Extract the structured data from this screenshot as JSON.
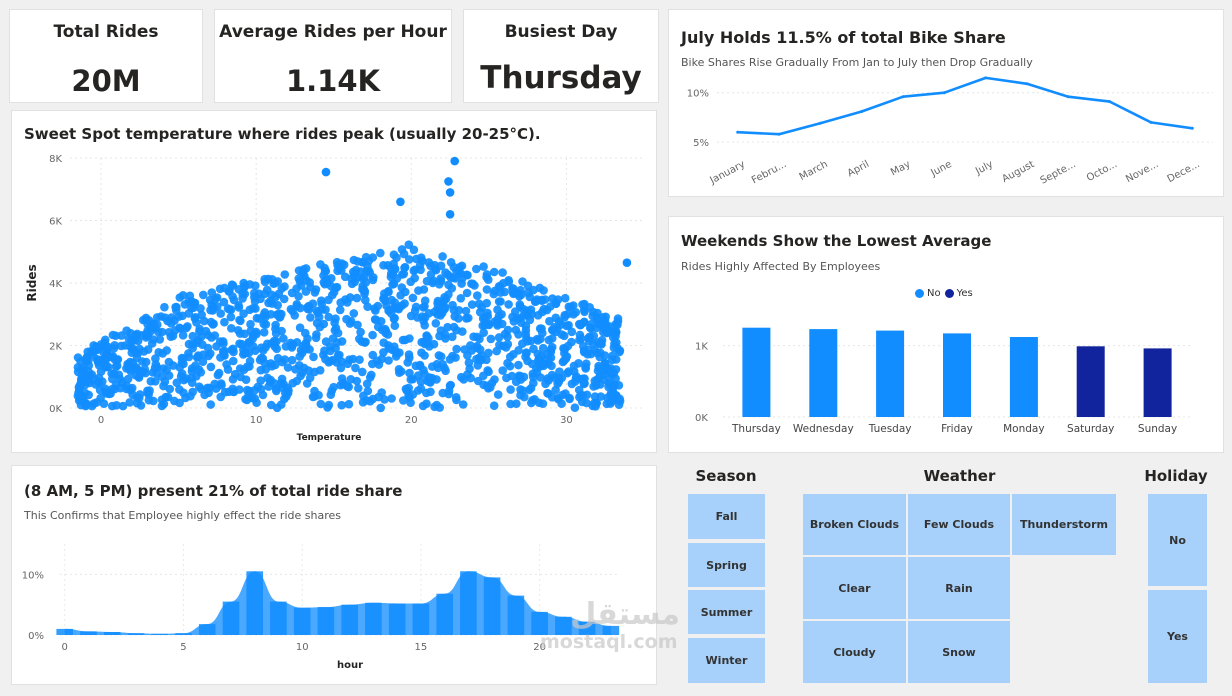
{
  "kpis": [
    {
      "title": "Total Rides",
      "value": "20M"
    },
    {
      "title": "Average Rides per Hour",
      "value": "1.14K"
    },
    {
      "title": "Busiest Day",
      "value": "Thursday"
    }
  ],
  "scatter": {
    "title": "Sweet Spot temperature where rides peak (usually 20-25°C).",
    "xlabel": "Temperature",
    "ylabel": "Rides",
    "color": "#118dff"
  },
  "monthly": {
    "title": "July Holds 11.5% of total Bike Share",
    "subtitle": "Bike Shares Rise Gradually From Jan to July then Drop Gradually",
    "color": "#118dff"
  },
  "weekday": {
    "title": "Weekends Show the Lowest Average",
    "subtitle": "Rides Highly Affected By Employees",
    "legend": [
      {
        "label": "No",
        "color": "#118dff"
      },
      {
        "label": "Yes",
        "color": "#12239e"
      }
    ]
  },
  "hourly": {
    "title": "(8 AM, 5 PM) present 21% of total ride share",
    "subtitle": "This Confirms that Employee highly effect the ride shares",
    "xlabel": "hour",
    "color": "#118dff"
  },
  "slicers": {
    "season": {
      "title": "Season",
      "items": [
        "Fall",
        "Spring",
        "Summer",
        "Winter"
      ]
    },
    "weather": {
      "title": "Weather",
      "items": [
        "Broken Clouds",
        "Few Clouds",
        "Thunderstorm",
        "Clear",
        "Rain",
        "Cloudy",
        "Snow"
      ]
    },
    "holiday": {
      "title": "Holiday",
      "items": [
        "No",
        "Yes"
      ]
    }
  },
  "watermark": {
    "arabic": "مستقل",
    "latin": "mostaql.com"
  },
  "chart_data": [
    {
      "type": "scatter",
      "title": "Sweet Spot temperature where rides peak (usually 20-25°C).",
      "xlabel": "Temperature",
      "ylabel": "Rides",
      "xlim": [
        -2,
        35
      ],
      "ylim": [
        0,
        8000
      ],
      "x_ticks": [
        0,
        10,
        20,
        30
      ],
      "y_ticks": [
        "0K",
        "2K",
        "4K",
        "6K",
        "8K"
      ],
      "grid": true,
      "highlight_points": [
        {
          "x": 14.5,
          "y": 7550
        },
        {
          "x": 22.8,
          "y": 7900
        },
        {
          "x": 22.4,
          "y": 7250
        },
        {
          "x": 22.5,
          "y": 6900
        },
        {
          "x": 19.3,
          "y": 6600
        },
        {
          "x": 22.5,
          "y": 6200
        },
        {
          "x": 33.9,
          "y": 4650
        }
      ]
    },
    {
      "type": "line",
      "title": "July Holds 11.5% of total Bike Share",
      "subtitle": "Bike Shares Rise Gradually From Jan to July then Drop Gradually",
      "categories": [
        "January",
        "February",
        "March",
        "April",
        "May",
        "June",
        "July",
        "August",
        "September",
        "October",
        "November",
        "December"
      ],
      "category_labels": [
        "January",
        "Febru...",
        "March",
        "April",
        "May",
        "June",
        "July",
        "August",
        "Septe...",
        "Octo...",
        "Nove...",
        "Dece..."
      ],
      "values": [
        6.0,
        5.8,
        6.9,
        8.1,
        9.6,
        10.0,
        11.5,
        10.9,
        9.6,
        9.1,
        7.0,
        6.4
      ],
      "y_ticks": [
        "5%",
        "10%"
      ],
      "ylim": [
        4,
        12.5
      ]
    },
    {
      "type": "bar",
      "title": "Weekends Show the Lowest Average",
      "subtitle": "Rides Highly Affected By Employees",
      "categories": [
        "Thursday",
        "Wednesday",
        "Tuesday",
        "Friday",
        "Monday",
        "Saturday",
        "Sunday"
      ],
      "series": [
        {
          "name": "No",
          "values": [
            1250,
            1230,
            1210,
            1170,
            1120,
            null,
            null
          ]
        },
        {
          "name": "Yes",
          "values": [
            null,
            null,
            null,
            null,
            null,
            990,
            960
          ]
        }
      ],
      "y_ticks": [
        "0K",
        "1K"
      ],
      "ylim": [
        0,
        1400
      ],
      "legend": "top-center"
    },
    {
      "type": "area",
      "title": "(8 AM, 5 PM) present 21% of total ride share",
      "subtitle": "This Confirms that Employee highly effect the ride shares",
      "xlabel": "hour",
      "x": [
        0,
        1,
        2,
        3,
        4,
        5,
        6,
        7,
        8,
        9,
        10,
        11,
        12,
        13,
        14,
        15,
        16,
        17,
        18,
        19,
        20,
        21,
        22,
        23
      ],
      "values": [
        1.0,
        0.6,
        0.5,
        0.3,
        0.2,
        0.3,
        1.8,
        5.5,
        10.5,
        5.5,
        4.5,
        4.6,
        5.0,
        5.3,
        5.2,
        5.2,
        6.8,
        10.5,
        9.5,
        6.5,
        3.8,
        3.0,
        2.2,
        1.5
      ],
      "x_ticks": [
        0,
        5,
        10,
        15,
        20
      ],
      "y_ticks": [
        "0%",
        "10%"
      ],
      "ylim": [
        0,
        15
      ]
    }
  ]
}
